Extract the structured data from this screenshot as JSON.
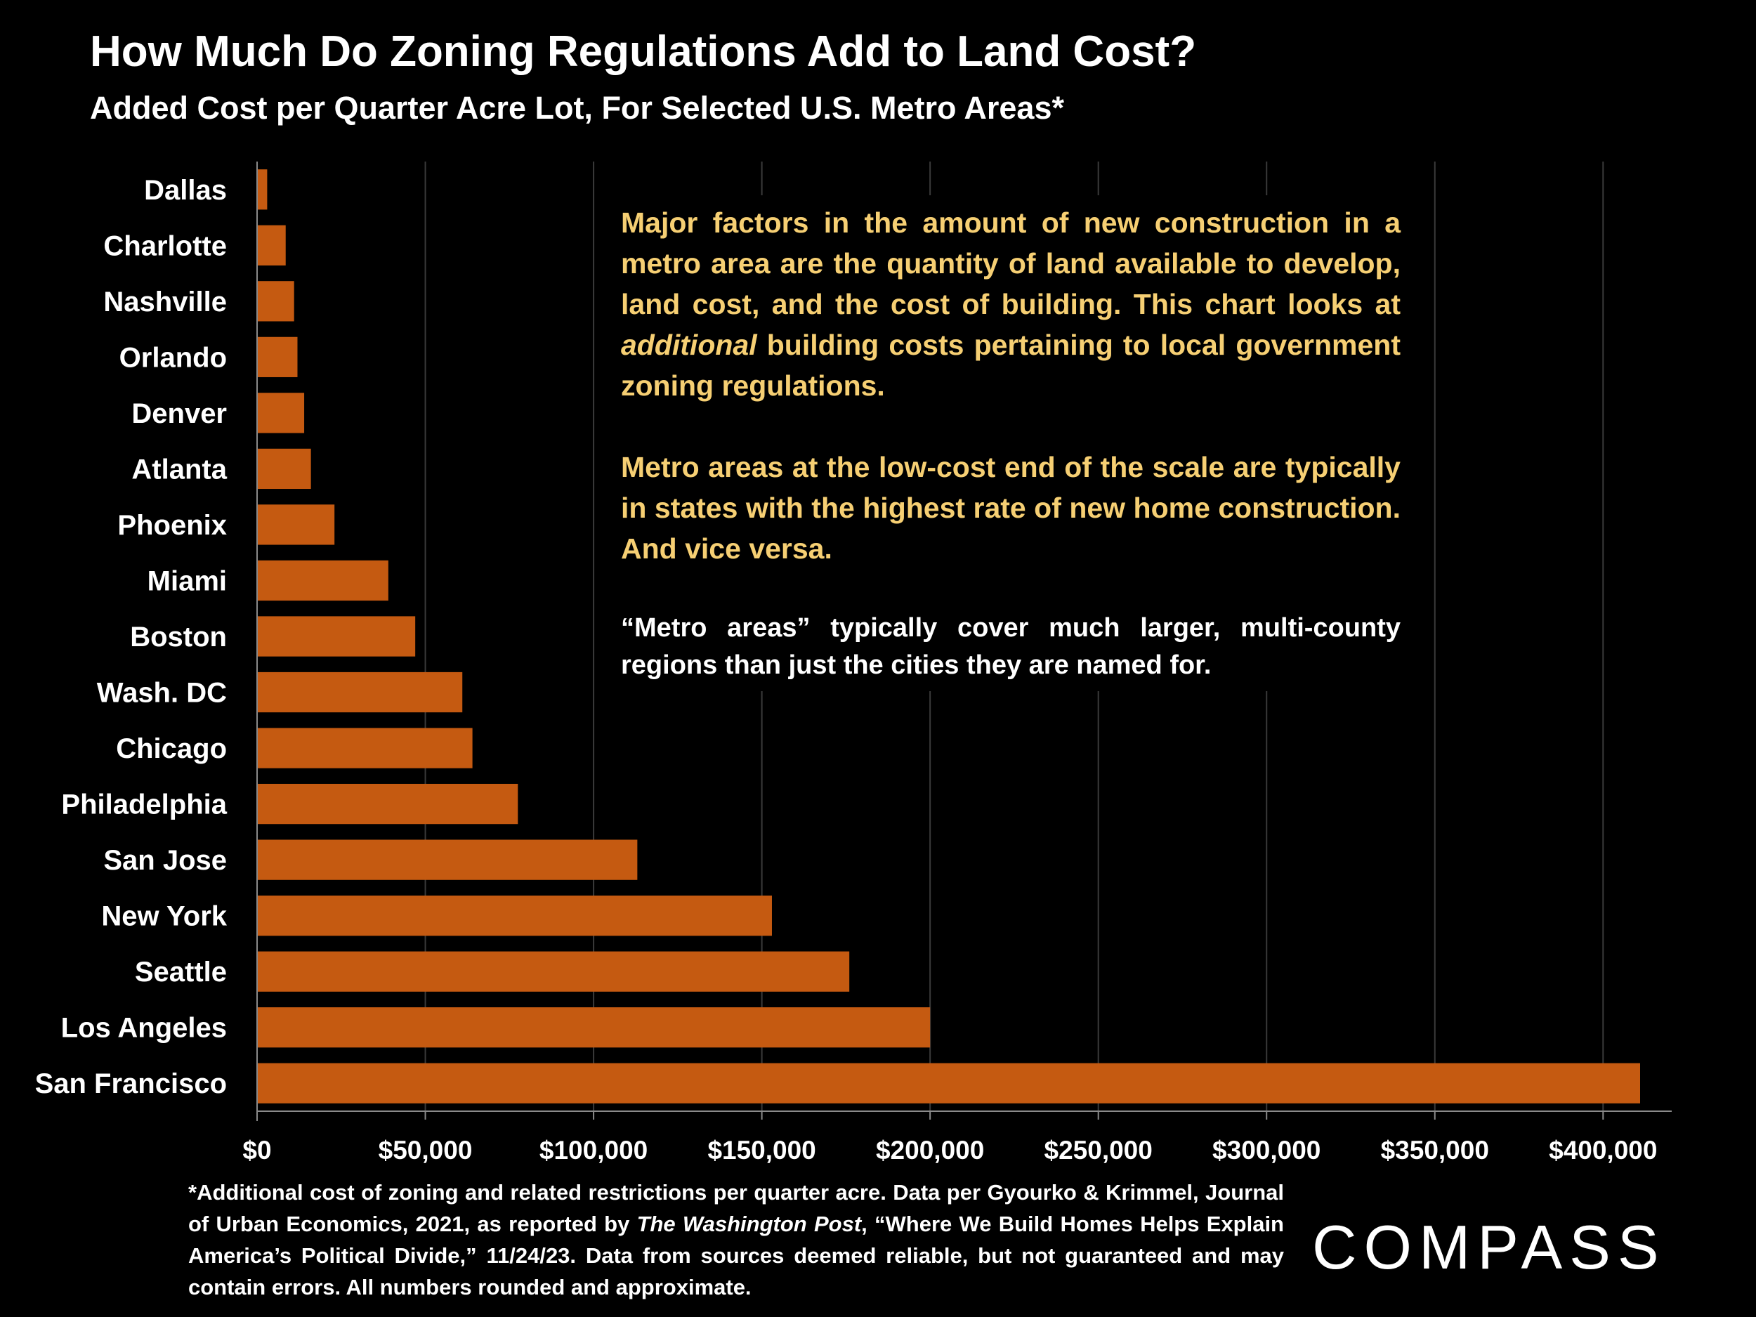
{
  "slide": {
    "title": "How Much Do Zoning Regulations Add to Land Cost?",
    "subtitle": "Added Cost per Quarter Acre Lot, For Selected U.S. Metro Areas*"
  },
  "annotation": {
    "p1_before": "Major factors in the amount of new construction in a metro area are the quantity of land available to develop, land cost, and the cost of building. This chart looks at ",
    "p1_italic": "additional",
    "p1_after": " building costs pertaining to local government zoning regulations.",
    "p2": "Metro areas at the low-cost end of the scale are typically in states with the highest rate of new home construction. And vice versa.",
    "p3": "“Metro areas” typically cover much larger, multi-county regions than just the cities they are named for."
  },
  "footnote": {
    "part1": "*Additional cost of zoning and related restrictions per quarter acre. Data per Gyourko & Krimmel, Journal of Urban Economics, 2021, as reported by ",
    "italic": "The Washington Post",
    "part2": ", “Where We Build Homes Helps Explain America’s Political Divide,” 11/24/23. Data from sources deemed reliable, but not guaranteed and may contain errors. All numbers rounded and approximate."
  },
  "logo": {
    "text": "COMPASS"
  },
  "colors": {
    "background": "#000000",
    "bar": "#c55a11",
    "annotation_text": "#f6cf73",
    "gridline": "#3a3a3a"
  },
  "chart_data": {
    "type": "bar",
    "orientation": "horizontal",
    "categories": [
      "Dallas",
      "Charlotte",
      "Nashville",
      "Orlando",
      "Denver",
      "Atlanta",
      "Phoenix",
      "Miami",
      "Boston",
      "Wash. DC",
      "Chicago",
      "Philadelphia",
      "San Jose",
      "New York",
      "Seattle",
      "Los Angeles",
      "San Francisco"
    ],
    "values": [
      3000,
      8500,
      11000,
      12000,
      14000,
      16000,
      23000,
      39000,
      47000,
      61000,
      64000,
      77500,
      113000,
      153000,
      176000,
      200000,
      411000
    ],
    "xlim": [
      0,
      420000
    ],
    "x_ticks": [
      0,
      50000,
      100000,
      150000,
      200000,
      250000,
      300000,
      350000,
      400000
    ],
    "x_tick_labels": [
      "$0",
      "$50,000",
      "$100,000",
      "$150,000",
      "$200,000",
      "$250,000",
      "$300,000",
      "$350,000",
      "$400,000"
    ],
    "grid": true,
    "legend": "none"
  }
}
